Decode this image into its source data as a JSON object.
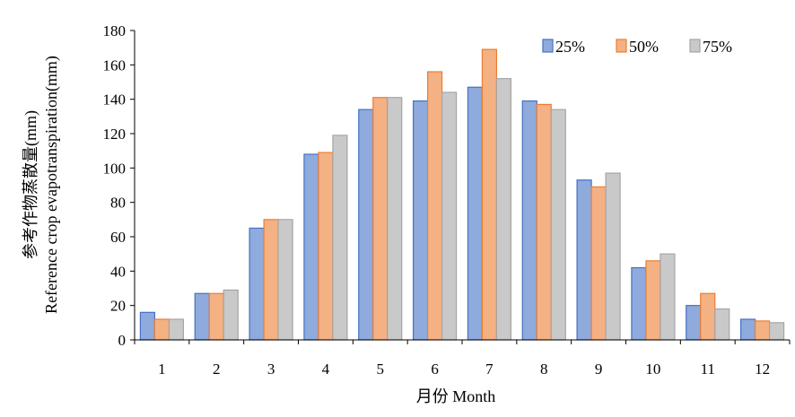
{
  "chart_data": {
    "type": "bar",
    "categories": [
      "1",
      "2",
      "3",
      "4",
      "5",
      "6",
      "7",
      "8",
      "9",
      "10",
      "11",
      "12"
    ],
    "series": [
      {
        "name": "25%",
        "color": "#8faadc",
        "stroke": "#4472c4",
        "values": [
          16,
          27,
          65,
          108,
          134,
          139,
          147,
          139,
          93,
          42,
          20,
          12
        ]
      },
      {
        "name": "50%",
        "color": "#f4b183",
        "stroke": "#ed7d31",
        "values": [
          12,
          27,
          70,
          109,
          141,
          156,
          169,
          137,
          89,
          46,
          27,
          11
        ]
      },
      {
        "name": "75%",
        "color": "#c9c9c9",
        "stroke": "#a5a5a5",
        "values": [
          12,
          29,
          70,
          119,
          141,
          144,
          152,
          134,
          97,
          50,
          18,
          10
        ]
      }
    ],
    "xlabel": "月份  Month",
    "ylabel": [
      "参考作物蒸散量(mm)",
      "Reference crop evapotranspiration(mm)"
    ],
    "ylim": [
      0,
      180
    ],
    "yticks": [
      0,
      20,
      40,
      60,
      80,
      100,
      120,
      140,
      160,
      180
    ],
    "grid": false,
    "legend": "top-right"
  }
}
